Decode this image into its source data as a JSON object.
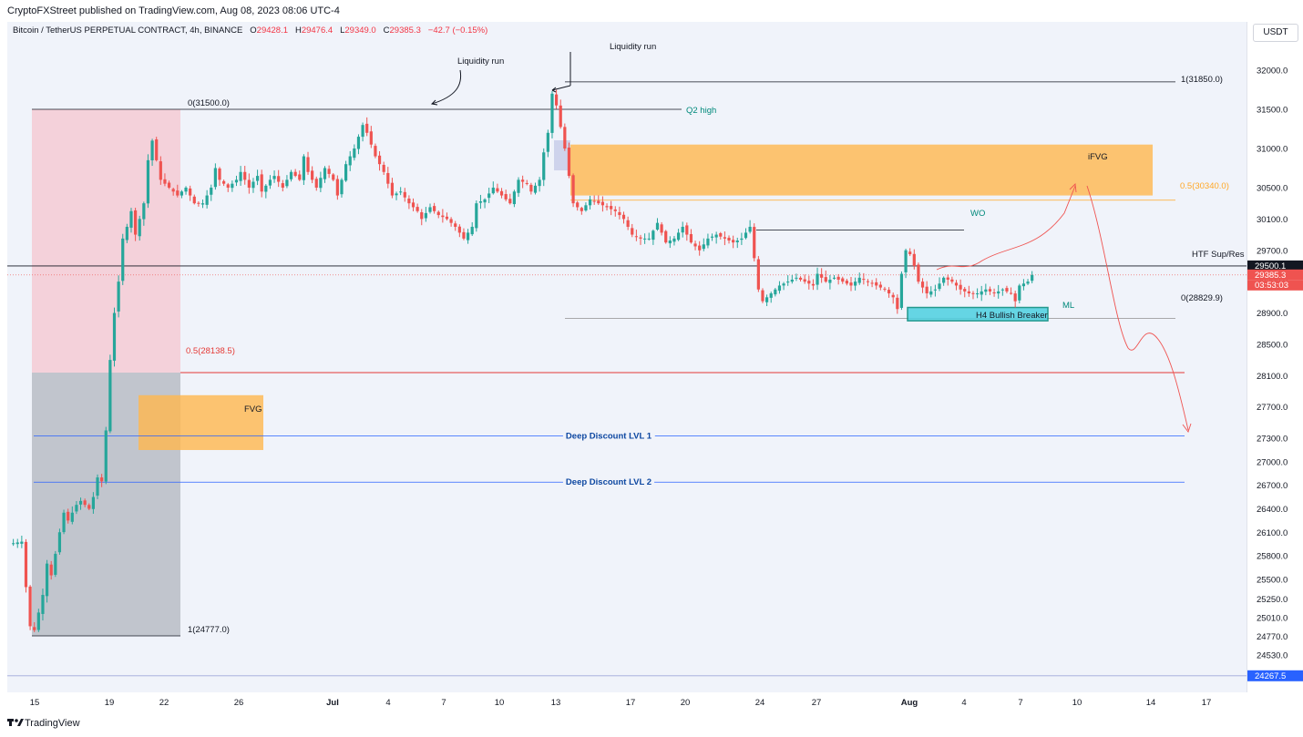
{
  "header": {
    "publisher": "CryptoFXStreet published on TradingView.com, Aug 08, 2023 08:06 UTC-4"
  },
  "legend": {
    "symbol": "Bitcoin / TetherUS PERPETUAL CONTRACT, 4h, BINANCE",
    "open_label": "O",
    "open": "29428.1",
    "high_label": "H",
    "high": "29476.4",
    "low_label": "L",
    "low": "29349.0",
    "close_label": "C",
    "close": "29385.3",
    "change": "−42.7 (−0.15%)"
  },
  "currency_button": "USDT",
  "footer": {
    "brand": "TradingView"
  },
  "colors": {
    "up": "#26a69a",
    "down": "#ef5350",
    "premium_zone": "#f5c6cf",
    "discount_zone": "#b2b5be",
    "fvg": "#ffb74d",
    "bullish_breaker": "#4dd0e1",
    "fib_half": "#e53935",
    "deep_discount": "#2962ff",
    "price_tag": "#ef5350",
    "line_tag": "#131722"
  },
  "chart_data": {
    "type": "candlestick",
    "timeframe": "4h",
    "ylim": [
      24267.5,
      32400.0
    ],
    "y_ticks": [
      "32400.0",
      "32000.0",
      "31500.0",
      "31000.0",
      "30500.0",
      "30100.0",
      "29700.0",
      "29300.0",
      "28900.0",
      "28500.0",
      "28100.0",
      "27700.0",
      "27300.0",
      "27000.0",
      "26700.0",
      "26400.0",
      "26100.0",
      "25800.0",
      "25500.0",
      "25250.0",
      "25010.0",
      "24770.0",
      "24530.0"
    ],
    "x_ticks": [
      "15",
      "19",
      "22",
      "26",
      "Jul",
      "4",
      "7",
      "10",
      "13",
      "17",
      "20",
      "24",
      "27",
      "Aug",
      "4",
      "7",
      "10",
      "14",
      "17"
    ],
    "price_tags": [
      {
        "label": "29500.1",
        "value": 29500.1
      },
      {
        "label": "29385.3",
        "value": 29385.3
      },
      {
        "label": "03:53:03",
        "value": 29385.3
      },
      {
        "label": "24267.5",
        "value": 24267.5
      }
    ],
    "current_close": 29385.3,
    "series_path": [
      [
        0,
        25950
      ],
      [
        3,
        25980
      ],
      [
        4,
        25400
      ],
      [
        5,
        24900
      ],
      [
        6,
        24850
      ],
      [
        8,
        25300
      ],
      [
        9,
        25700
      ],
      [
        10,
        25550
      ],
      [
        12,
        26100
      ],
      [
        13,
        26350
      ],
      [
        14,
        26250
      ],
      [
        16,
        26450
      ],
      [
        17,
        26500
      ],
      [
        19,
        26400
      ],
      [
        20,
        26550
      ],
      [
        21,
        26800
      ],
      [
        22,
        26750
      ],
      [
        23,
        27400
      ],
      [
        24,
        28300
      ],
      [
        25,
        28900
      ],
      [
        26,
        29300
      ],
      [
        27,
        29850
      ],
      [
        28,
        30000
      ],
      [
        29,
        30200
      ],
      [
        30,
        29900
      ],
      [
        32,
        30300
      ],
      [
        33,
        30850
      ],
      [
        34,
        31100
      ],
      [
        36,
        30600
      ],
      [
        38,
        30500
      ],
      [
        40,
        30400
      ],
      [
        42,
        30500
      ],
      [
        44,
        30300
      ],
      [
        46,
        30300
      ],
      [
        48,
        30500
      ],
      [
        49,
        30750
      ],
      [
        50,
        30600
      ],
      [
        52,
        30500
      ],
      [
        54,
        30600
      ],
      [
        55,
        30700
      ],
      [
        57,
        30500
      ],
      [
        59,
        30650
      ],
      [
        60,
        30450
      ],
      [
        62,
        30600
      ],
      [
        63,
        30650
      ],
      [
        65,
        30500
      ],
      [
        67,
        30700
      ],
      [
        69,
        30600
      ],
      [
        70,
        30900
      ],
      [
        71,
        30700
      ],
      [
        73,
        30500
      ],
      [
        75,
        30750
      ],
      [
        77,
        30600
      ],
      [
        78,
        30400
      ],
      [
        80,
        30800
      ],
      [
        82,
        31000
      ],
      [
        84,
        31300
      ],
      [
        85,
        31200
      ],
      [
        87,
        30900
      ],
      [
        89,
        30700
      ],
      [
        91,
        30400
      ],
      [
        93,
        30450
      ],
      [
        95,
        30300
      ],
      [
        97,
        30200
      ],
      [
        98,
        30100
      ],
      [
        100,
        30250
      ],
      [
        102,
        30150
      ],
      [
        104,
        30100
      ],
      [
        106,
        30000
      ],
      [
        108,
        29850
      ],
      [
        110,
        30000
      ],
      [
        111,
        30300
      ],
      [
        113,
        30350
      ],
      [
        115,
        30500
      ],
      [
        117,
        30400
      ],
      [
        119,
        30300
      ],
      [
        121,
        30600
      ],
      [
        123,
        30550
      ],
      [
        124,
        30450
      ],
      [
        126,
        30600
      ],
      [
        127,
        30950
      ],
      [
        128,
        31200
      ],
      [
        129,
        31700
      ],
      [
        130,
        31550
      ],
      [
        132,
        31000
      ],
      [
        134,
        30300
      ],
      [
        136,
        30200
      ],
      [
        138,
        30350
      ],
      [
        140,
        30300
      ],
      [
        142,
        30250
      ],
      [
        144,
        30200
      ],
      [
        146,
        30100
      ],
      [
        148,
        29900
      ],
      [
        150,
        29850
      ],
      [
        152,
        29850
      ],
      [
        154,
        30050
      ],
      [
        156,
        29800
      ],
      [
        158,
        29850
      ],
      [
        160,
        30000
      ],
      [
        162,
        29800
      ],
      [
        164,
        29700
      ],
      [
        166,
        29850
      ],
      [
        168,
        29900
      ],
      [
        170,
        29850
      ],
      [
        172,
        29800
      ],
      [
        174,
        29850
      ],
      [
        176,
        30000
      ],
      [
        177,
        29600
      ],
      [
        178,
        29200
      ],
      [
        179,
        29050
      ],
      [
        181,
        29150
      ],
      [
        183,
        29250
      ],
      [
        185,
        29300
      ],
      [
        187,
        29350
      ],
      [
        189,
        29300
      ],
      [
        191,
        29250
      ],
      [
        192,
        29400
      ],
      [
        194,
        29300
      ],
      [
        196,
        29350
      ],
      [
        198,
        29300
      ],
      [
        200,
        29250
      ],
      [
        202,
        29350
      ],
      [
        204,
        29300
      ],
      [
        206,
        29250
      ],
      [
        208,
        29200
      ],
      [
        210,
        29100
      ],
      [
        211,
        28950
      ],
      [
        212,
        29400
      ],
      [
        213,
        29700
      ],
      [
        214,
        29650
      ],
      [
        215,
        29500
      ],
      [
        216,
        29300
      ],
      [
        218,
        29150
      ],
      [
        220,
        29200
      ],
      [
        222,
        29350
      ],
      [
        224,
        29300
      ],
      [
        226,
        29200
      ],
      [
        228,
        29150
      ],
      [
        230,
        29150
      ],
      [
        232,
        29200
      ],
      [
        234,
        29150
      ],
      [
        236,
        29200
      ],
      [
        238,
        29150
      ],
      [
        239,
        29050
      ],
      [
        240,
        29250
      ],
      [
        242,
        29300
      ],
      [
        243,
        29385
      ]
    ],
    "annotations": {
      "text_labels": [
        "Liquidity run",
        "Liquidity run",
        "0(31500.0)",
        "Q2 high",
        "1(31850.0)",
        "iFVG",
        "0.5(30340.0)",
        "WO",
        "HTF Sup/Res",
        "0(28829.9)",
        "ML",
        "H4 Bullish Breaker",
        "0.5(28138.5)",
        "FVG",
        "Deep Discount LVL 1",
        "Deep Discount LVL 2",
        "1(24777.0)"
      ],
      "levels": [
        {
          "name": "fib-1-top",
          "value": 31850.0
        },
        {
          "name": "q2-high",
          "value": 31500.0
        },
        {
          "name": "ifvg-fib-half",
          "value": 30340.0
        },
        {
          "name": "wo",
          "value": 29960.0
        },
        {
          "name": "htf-sup-res",
          "value": 29500.1
        },
        {
          "name": "fib-0-bottom",
          "value": 28829.9
        },
        {
          "name": "fib-half-range",
          "value": 28138.5
        },
        {
          "name": "deep-discount-1",
          "value": 27330.0
        },
        {
          "name": "deep-discount-2",
          "value": 26740.0
        },
        {
          "name": "range-low",
          "value": 24777.0
        }
      ],
      "zones": [
        {
          "name": "premium-zone",
          "low": 28138.5,
          "high": 31500.0
        },
        {
          "name": "discount-zone",
          "low": 24777.0,
          "high": 28138.5
        },
        {
          "name": "fvg-zone",
          "low": 27150.0,
          "high": 27850.0
        },
        {
          "name": "ifvg-zone",
          "low": 30400.0,
          "high": 31050.0
        },
        {
          "name": "bullish-breaker-zone",
          "low": 28800.0,
          "high": 28970.0
        }
      ]
    }
  }
}
